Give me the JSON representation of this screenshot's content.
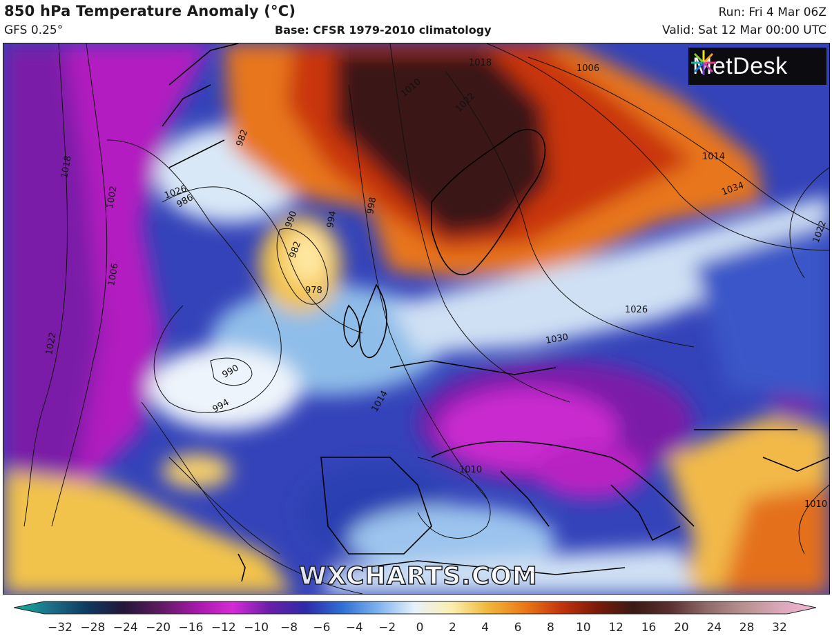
{
  "header": {
    "title": "850 hPa Temperature Anomaly (°C)",
    "model": "GFS 0.25°",
    "base": "Base: CFSR 1979-2010 climatology",
    "run": "Run: Fri 4 Mar 06Z",
    "valid": "Valid: Sat 12 Mar 00:00 UTC"
  },
  "logo": {
    "text": "MetDesk",
    "icon": "metdesk-starburst-logo"
  },
  "watermark": "WXCHARTS.COM",
  "map": {
    "isobar_labels": [
      "1018",
      "1002",
      "1006",
      "1022",
      "1026",
      "982",
      "986",
      "990",
      "982",
      "978",
      "994",
      "998",
      "1010",
      "1022",
      "1018",
      "1006",
      "1014",
      "1026",
      "1034",
      "1030",
      "1022",
      "990",
      "994",
      "1014",
      "1010",
      "1010"
    ]
  },
  "colorbar": {
    "ticks": [
      "−32",
      "−28",
      "−24",
      "−20",
      "−16",
      "−12",
      "−10",
      "−8",
      "−6",
      "−4",
      "−2",
      "0",
      "2",
      "4",
      "6",
      "8",
      "10",
      "12",
      "16",
      "20",
      "24",
      "28",
      "32"
    ],
    "colors": [
      "#12b39a",
      "#1d6f88",
      "#0f3a5e",
      "#23163a",
      "#5c1a5f",
      "#a418a8",
      "#d52bd6",
      "#6a1fa8",
      "#2e2aa8",
      "#2f6ed3",
      "#7fb3ee",
      "#e8f1fb",
      "#fbefb0",
      "#f0b73b",
      "#ea7a17",
      "#c2350d",
      "#7a1a0a",
      "#3a1a14",
      "#5a3030",
      "#8f6a6a",
      "#b89090",
      "#d9a8b8",
      "#f3b6d6"
    ]
  }
}
